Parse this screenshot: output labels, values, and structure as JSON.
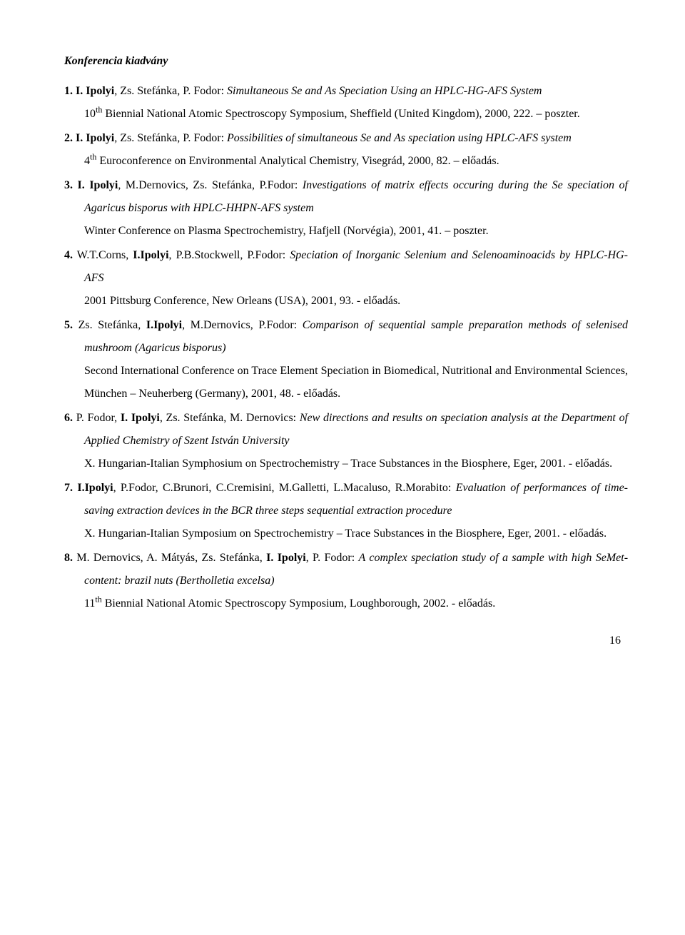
{
  "heading": "Konferencia kiadvány",
  "entries": [
    {
      "num": "1.",
      "authors_prefix": "I. Ipolyi",
      "authors_rest": ", Zs. Stefánka, P. Fodor: ",
      "title": "Simultaneous Se and As Speciation Using an HPLC-HG-AFS System",
      "venue_pre_sup": "10",
      "venue_sup": "th",
      "venue_post_sup": " Biennial National Atomic Spectroscopy Symposium, Sheffield (United Kingdom), 2000, 222. – poszter."
    },
    {
      "num": "2.",
      "authors_prefix": "I. Ipolyi",
      "authors_rest": ", Zs. Stefánka, P. Fodor: ",
      "title": "Possibilities of simultaneous Se and As speciation using HPLC-AFS system",
      "venue_pre_sup": "4",
      "venue_sup": "th",
      "venue_post_sup": " Euroconference on Environmental Analytical Chemistry, Visegrád, 2000, 82. – előadás."
    },
    {
      "num": "3.",
      "authors_prefix": "I. Ipolyi",
      "authors_rest": ", M.Dernovics, Zs. Stefánka, P.Fodor: ",
      "title": "Investigations of matrix effects occuring during the Se speciation of Agaricus bisporus with HPLC-HHPN-AFS system",
      "venue_pre_sup": "",
      "venue_sup": "",
      "venue_post_sup": "Winter Conference on Plasma Spectrochemistry, Hafjell (Norvégia), 2001, 41. – poszter."
    },
    {
      "num": "4.",
      "authors_pre": "W.T.Corns, ",
      "authors_prefix": "I.Ipolyi",
      "authors_rest": ", P.B.Stockwell, P.Fodor: ",
      "title": "Speciation of Inorganic Selenium and Selenoaminoacids by HPLC-HG-AFS",
      "venue_pre_sup": "",
      "venue_sup": "",
      "venue_post_sup": "2001 Pittsburg Conference, New Orleans (USA), 2001, 93. - előadás."
    },
    {
      "num": "5.",
      "authors_pre": "Zs. Stefánka, ",
      "authors_prefix": "I.Ipolyi",
      "authors_rest": ", M.Dernovics, P.Fodor: ",
      "title": "Comparison of sequential sample preparation methods of selenised mushroom (Agaricus bisporus)",
      "venue_pre_sup": "",
      "venue_sup": "",
      "venue_post_sup": "Second International Conference on Trace Element Speciation in Biomedical, Nutritional and Environmental Sciences, München – Neuherberg (Germany), 2001, 48. - előadás."
    },
    {
      "num": "6.",
      "authors_pre": "P. Fodor, ",
      "authors_prefix": "I. Ipolyi",
      "authors_rest": ", Zs. Stefánka, M. Dernovics: ",
      "title": "New directions and results on speciation analysis at the Department of Applied Chemistry of Szent István University",
      "venue_pre_sup": "",
      "venue_sup": "",
      "venue_post_sup": "X. Hungarian-Italian Symphosium on Spectrochemistry – Trace Substances in the Biosphere, Eger, 2001. - előadás."
    },
    {
      "num": "7.",
      "authors_prefix": "I.Ipolyi",
      "authors_rest": ", P.Fodor, C.Brunori, C.Cremisini, M.Galletti, L.Macaluso, R.Morabito: ",
      "title": "Evaluation of performances of time-saving extraction devices in the BCR three steps sequential extraction procedure",
      "venue_pre_sup": "",
      "venue_sup": "",
      "venue_post_sup": "X. Hungarian-Italian Symposium on Spectrochemistry – Trace Substances in the Biosphere, Eger, 2001. - előadás."
    },
    {
      "num": "8.",
      "authors_pre": "M. Dernovics, A. Mátyás, Zs. Stefánka, ",
      "authors_prefix": "I. Ipolyi",
      "authors_rest": ", P. Fodor: ",
      "title": "A complex speciation study of a sample with high SeMet-content: brazil nuts (Bertholletia excelsa)",
      "venue_pre_sup": "11",
      "venue_sup": "th",
      "venue_post_sup": " Biennial National Atomic Spectroscopy Symposium, Loughborough, 2002. - előadás."
    }
  ],
  "page_number": "16"
}
